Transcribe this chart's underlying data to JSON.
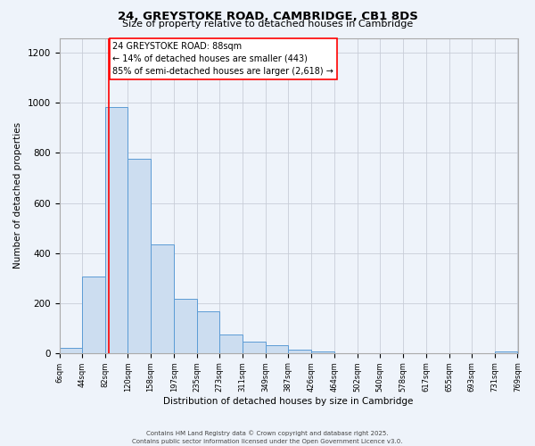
{
  "title": "24, GREYSTOKE ROAD, CAMBRIDGE, CB1 8DS",
  "subtitle": "Size of property relative to detached houses in Cambridge",
  "xlabel": "Distribution of detached houses by size in Cambridge",
  "ylabel": "Number of detached properties",
  "bar_color": "#ccddf0",
  "bar_edge_color": "#5b9bd5",
  "background_color": "#eef3fa",
  "grid_color": "#c8cdd8",
  "red_line_x": 88,
  "annotation_text": "24 GREYSTOKE ROAD: 88sqm\n← 14% of detached houses are smaller (443)\n85% of semi-detached houses are larger (2,618) →",
  "footnote1": "Contains HM Land Registry data © Crown copyright and database right 2025.",
  "footnote2": "Contains public sector information licensed under the Open Government Licence v3.0.",
  "bin_edges": [
    6,
    44,
    82,
    120,
    158,
    197,
    235,
    273,
    311,
    349,
    387,
    426,
    464,
    502,
    540,
    578,
    617,
    655,
    693,
    731,
    769
  ],
  "bar_heights": [
    20,
    305,
    985,
    775,
    435,
    215,
    165,
    75,
    45,
    30,
    15,
    5,
    0,
    0,
    0,
    0,
    0,
    0,
    0,
    5
  ],
  "xlim": [
    6,
    769
  ],
  "ylim": [
    0,
    1260
  ],
  "yticks": [
    0,
    200,
    400,
    600,
    800,
    1000,
    1200
  ],
  "xtick_labels": [
    "6sqm",
    "44sqm",
    "82sqm",
    "120sqm",
    "158sqm",
    "197sqm",
    "235sqm",
    "273sqm",
    "311sqm",
    "349sqm",
    "387sqm",
    "426sqm",
    "464sqm",
    "502sqm",
    "540sqm",
    "578sqm",
    "617sqm",
    "655sqm",
    "693sqm",
    "731sqm",
    "769sqm"
  ]
}
